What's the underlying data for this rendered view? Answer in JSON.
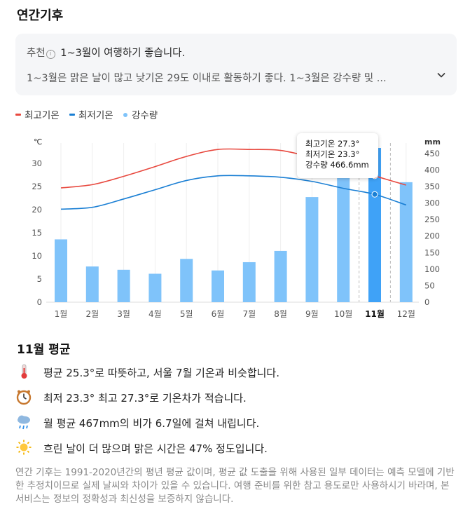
{
  "page": {
    "title": "연간기후"
  },
  "recommendation": {
    "tag": "추천",
    "info_icon": "info-icon",
    "headline": "1~3월이 여행하기 좋습니다.",
    "detail": "1~3월은 맑은 날이 많고 낮기온 29도 이내로 활동하기 좋다. 1~3월은 강수량 및 ...",
    "expand_icon": "chevron-down-icon"
  },
  "legend": {
    "max_temp": "최고기온",
    "min_temp": "최저기온",
    "rain": "강수량"
  },
  "colors": {
    "max_temp": "#e8493f",
    "min_temp": "#1a7fd4",
    "rain": "#7fc3fa",
    "rain_selected": "#3fa2f7",
    "grid": "#eeeeee"
  },
  "chart_data": {
    "type": "bar",
    "categories": [
      "1월",
      "2월",
      "3월",
      "4월",
      "5월",
      "6월",
      "7월",
      "8월",
      "9월",
      "10월",
      "11월",
      "12월"
    ],
    "selected_index": 10,
    "y_left": {
      "label": "℃",
      "ticks": [
        0,
        5,
        10,
        15,
        20,
        25,
        30
      ],
      "range": [
        0,
        35
      ]
    },
    "y_right": {
      "label": "mm",
      "ticks": [
        0,
        50,
        100,
        150,
        200,
        250,
        300,
        350,
        400,
        450
      ],
      "range": [
        0,
        490
      ]
    },
    "series": [
      {
        "name": "강수량",
        "kind": "bar",
        "axis": "right",
        "values": [
          190,
          108,
          98,
          86,
          131,
          96,
          121,
          155,
          318,
          392,
          466.6,
          363
        ]
      },
      {
        "name": "최고기온",
        "kind": "line",
        "axis": "left",
        "values": [
          24.7,
          25.4,
          27.2,
          29.3,
          31.5,
          33.0,
          33.0,
          32.8,
          31.3,
          29.5,
          27.3,
          25.3
        ]
      },
      {
        "name": "최저기온",
        "kind": "line",
        "axis": "left",
        "values": [
          20.1,
          20.5,
          22.3,
          24.3,
          26.3,
          27.3,
          27.3,
          27.0,
          26.1,
          24.6,
          23.3,
          21.0
        ]
      }
    ],
    "grid": true
  },
  "tooltip": {
    "max_label": "최고기온 27.3°",
    "min_label": "최저기온 23.3°",
    "rain_label": "강수량 466.6mm"
  },
  "summary": {
    "title": "11월 평균",
    "facts": [
      {
        "icon": "thermometer-icon",
        "text": "평균 25.3°로 따뜻하고, 서울 7월 기온과 비슷합니다."
      },
      {
        "icon": "clock-icon",
        "text": "최저 23.3° 최고 27.3°로 기온차가 적습니다."
      },
      {
        "icon": "rain-cloud-icon",
        "text": "월 평균 467mm의 비가 6.7일에 걸쳐 내립니다."
      },
      {
        "icon": "sun-icon",
        "text": "흐린 날이 더 많으며 맑은 시간은 47% 정도입니다."
      }
    ]
  },
  "footnote": "연간 기후는 1991-2020년간의 평년 평균 값이며, 평균 값 도출을 위해 사용된 일부 데이터는 예측 모델에 기반한 추정치이므로 실제 날씨와 차이가 있을 수 있습니다. 여행 준비를 위한 참고 용도로만 사용하시기 바라며, 본 서비스는 정보의 정확성과 최신성을 보증하지 않습니다."
}
